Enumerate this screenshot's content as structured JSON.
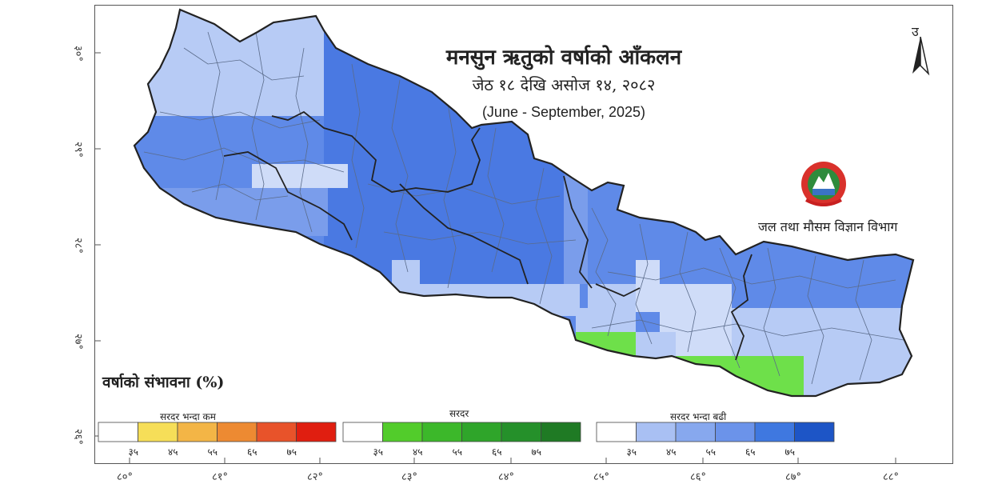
{
  "title": {
    "line1": "मनसुन ऋतुको वर्षाको आँकलन",
    "line2": "जेठ १८ देखि असोज १४, २०८२",
    "line3": "(June - September, 2025)"
  },
  "department": "जल तथा मौसम विज्ञान विभाग",
  "north_arrow": "उ",
  "legend": {
    "title": "वर्षाको संभावना (%)",
    "groups": [
      {
        "label": "सरदर भन्दा कम",
        "colors": [
          "#ffffff",
          "#f6de58",
          "#f3b546",
          "#ed8a32",
          "#e8532a",
          "#e01e10"
        ],
        "ticks": [
          "३५",
          "४५",
          "५५",
          "६५",
          "७५"
        ]
      },
      {
        "label": "सरदर",
        "colors": [
          "#ffffff",
          "#52cc2b",
          "#3cb82a",
          "#2fa52a",
          "#25902a",
          "#1f7a24"
        ],
        "ticks": [
          "३५",
          "४५",
          "५५",
          "६५",
          "७५"
        ]
      },
      {
        "label": "सरदर भन्दा बढी",
        "colors": [
          "#ffffff",
          "#a9c0f3",
          "#87a8ee",
          "#6b93ea",
          "#3f78e0",
          "#1d55c6"
        ],
        "ticks": [
          "३५",
          "४५",
          "५५",
          "६५",
          "७५"
        ]
      }
    ]
  },
  "longitudes": [
    "८०°",
    "८१°",
    "८२°",
    "८३°",
    "८४°",
    "८५°",
    "८६°",
    "८७°",
    "८८°"
  ],
  "latitudes": [
    "३०°",
    "२९°",
    "२८°",
    "२७°",
    "२६°"
  ],
  "map_colors": {
    "light_blue": "#b7cbf5",
    "mid_blue": "#7a9deb",
    "blue": "#5f8ae8",
    "dark_blue": "#4a79e2",
    "pale_blue": "#cfdcf8",
    "green": "#6ee04a",
    "boundary": "#333333",
    "district": "#5a6b8a"
  }
}
